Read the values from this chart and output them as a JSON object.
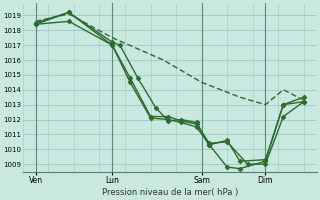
{
  "background_color": "#c8e8e0",
  "grid_color": "#a0c8c0",
  "line_color": "#2d6a2d",
  "marker_color": "#2d6a2d",
  "xlabel_text": "Pression niveau de la mer( hPa )",
  "ylim": [
    1008.5,
    1019.8
  ],
  "yticks": [
    1009,
    1010,
    1011,
    1012,
    1013,
    1014,
    1015,
    1016,
    1017,
    1018,
    1019
  ],
  "xtick_labels": [
    "Ven",
    "Lun",
    "Sam",
    "Dim"
  ],
  "xtick_positions": [
    0.5,
    3.5,
    7.0,
    9.5
  ],
  "vline_positions": [
    0.5,
    3.5,
    7.0,
    9.5
  ],
  "xlim": [
    0,
    11.5
  ],
  "series": [
    {
      "x": [
        0.5,
        1.8,
        3.5,
        4.2,
        5.0,
        5.7,
        6.2,
        6.8,
        7.3,
        8.0,
        8.8,
        9.5,
        10.2,
        11.0
      ],
      "y": [
        1018.5,
        1019.2,
        1017.0,
        1014.8,
        1012.2,
        1012.2,
        1011.9,
        1011.7,
        1010.4,
        1010.5,
        1009.0,
        1009.0,
        1012.2,
        1013.2
      ],
      "style": "-",
      "marker": "D",
      "markersize": 2.5,
      "linewidth": 1.0
    },
    {
      "x": [
        0.5,
        1.8,
        3.5,
        4.2,
        5.0,
        5.7,
        6.2,
        6.8,
        7.3,
        8.0,
        8.5,
        9.5,
        10.2,
        11.0
      ],
      "y": [
        1018.4,
        1018.6,
        1017.0,
        1014.5,
        1012.1,
        1012.0,
        1011.8,
        1011.5,
        1010.3,
        1008.8,
        1008.7,
        1009.2,
        1013.0,
        1013.2
      ],
      "style": "-",
      "marker": "D",
      "markersize": 2.5,
      "linewidth": 1.0
    },
    {
      "x": [
        0.5,
        1.8,
        3.5,
        5.5,
        7.0,
        8.5,
        9.5,
        10.2,
        11.0
      ],
      "y": [
        1018.6,
        1019.1,
        1017.5,
        1016.0,
        1014.5,
        1013.5,
        1013.0,
        1014.0,
        1013.3
      ],
      "style": "--",
      "marker": null,
      "markersize": 0,
      "linewidth": 1.0
    },
    {
      "x": [
        0.5,
        1.8,
        3.5,
        3.8,
        4.5,
        5.2,
        5.7,
        6.2,
        6.8,
        7.3,
        8.0,
        8.5,
        9.5,
        10.2,
        11.0
      ],
      "y": [
        1018.4,
        1019.2,
        1017.2,
        1017.0,
        1014.8,
        1012.8,
        1011.9,
        1012.0,
        1011.8,
        1010.3,
        1010.6,
        1009.2,
        1009.3,
        1013.0,
        1013.5
      ],
      "style": "-",
      "marker": "D",
      "markersize": 2.5,
      "linewidth": 1.0
    }
  ],
  "figsize": [
    3.2,
    2.0
  ],
  "dpi": 100
}
